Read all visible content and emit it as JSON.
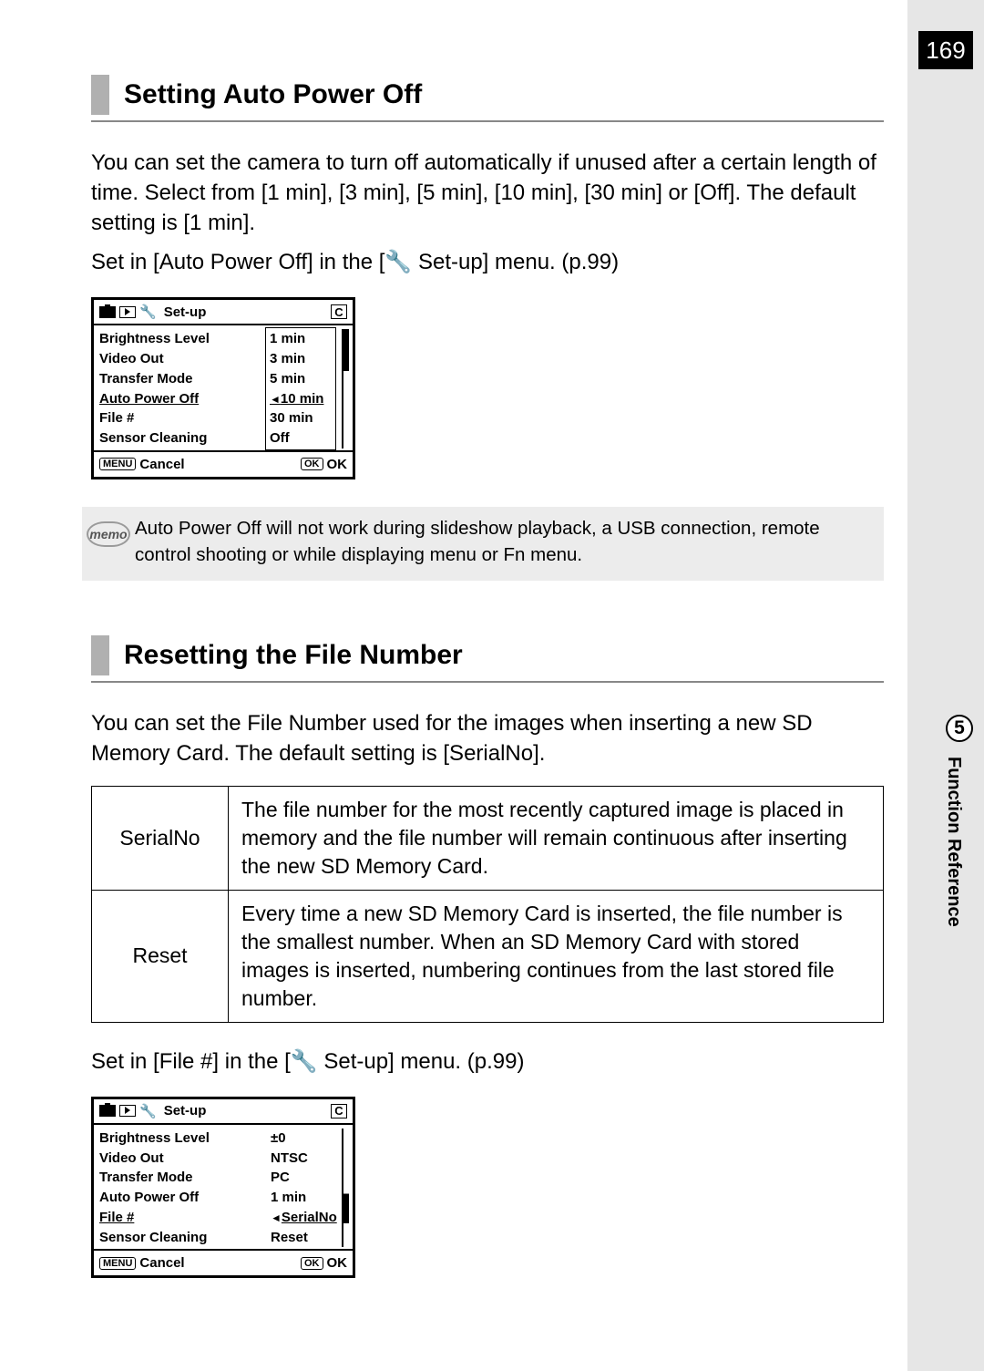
{
  "page_number": "169",
  "chapter_number": "5",
  "chapter_label": "Function Reference",
  "section1": {
    "title": "Setting Auto Power Off",
    "para": "You can set the camera to turn off automatically if unused after a certain length of time. Select from [1 min], [3 min], [5 min], [10 min], [30 min] or [Off]. The default setting is [1 min].",
    "para2_a": "Set in [Auto Power Off] in the [",
    "para2_b": " Set-up] menu. (p.99)"
  },
  "lcd1": {
    "setup": "Set-up",
    "c": "C",
    "labels": [
      "Brightness Level",
      "Video Out",
      "Transfer Mode",
      "Auto Power Off",
      "File #",
      "Sensor Cleaning"
    ],
    "selected_label_idx": 3,
    "options": [
      "1 min",
      "3 min",
      "5 min",
      "10 min",
      "30 min",
      "Off"
    ],
    "selected_opt_idx": 3,
    "menu": "MENU",
    "cancel": "Cancel",
    "ok_btn": "OK",
    "ok": "OK"
  },
  "memo": {
    "label": "memo",
    "text": "Auto Power Off will not work during slideshow playback, a USB connection, remote control shooting or while displaying menu or Fn menu."
  },
  "section2": {
    "title": "Resetting the File Number",
    "para": "You can set the File Number used for the images when inserting a new SD Memory Card. The default setting is [SerialNo].",
    "para2_a": "Set in [File #] in the [",
    "para2_b": " Set-up] menu. (p.99)"
  },
  "table": {
    "rows": [
      {
        "k": "SerialNo",
        "v": "The file number for the most recently captured image is placed in memory and the file number will remain continuous after inserting the new SD Memory Card."
      },
      {
        "k": "Reset",
        "v": "Every time a new SD Memory Card is inserted, the file number is the smallest number. When an SD Memory Card with stored images is inserted, numbering continues from the last stored file number."
      }
    ]
  },
  "lcd2": {
    "setup": "Set-up",
    "c": "C",
    "labels": [
      "Brightness Level",
      "Video Out",
      "Transfer Mode",
      "Auto Power Off",
      "File #",
      "Sensor Cleaning"
    ],
    "selected_label_idx": 4,
    "values": [
      "±0",
      "NTSC",
      "PC",
      "1 min",
      "SerialNo",
      "Reset"
    ],
    "selected_val_idx": 4,
    "menu": "MENU",
    "cancel": "Cancel",
    "ok_btn": "OK",
    "ok": "OK"
  },
  "tool_icon": "🔧"
}
